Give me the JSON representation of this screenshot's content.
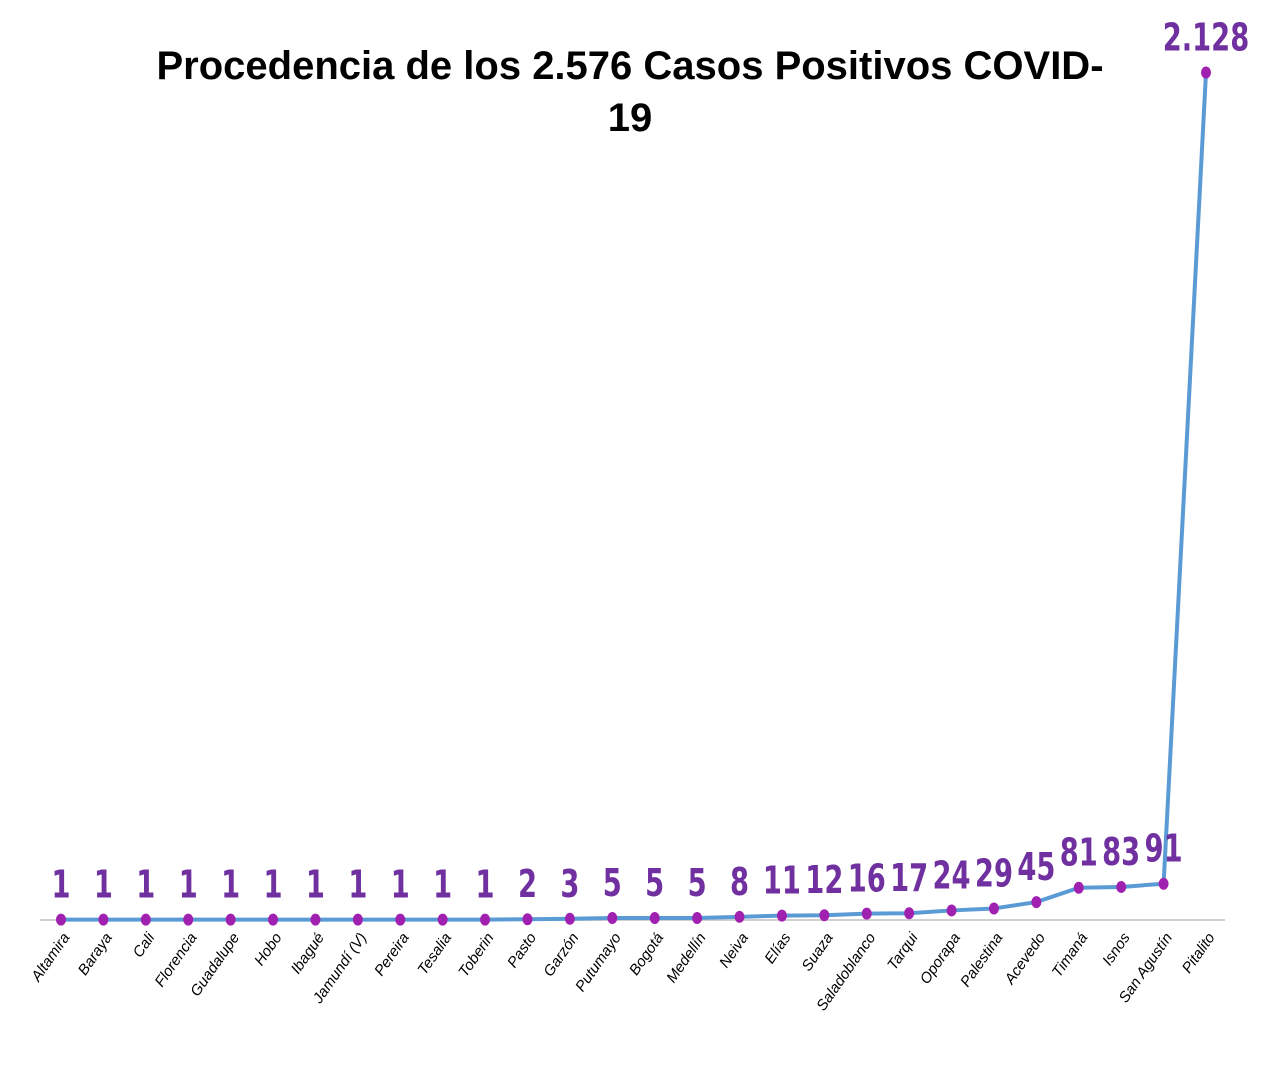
{
  "chart_data": {
    "type": "line",
    "title": "Procedencia de los 2.576 Casos Positivos COVID-19",
    "categories": [
      "Altamira",
      "Baraya",
      "Cali",
      "Florencia",
      "Guadalupe",
      "Hobo",
      "Ibagué",
      "Jamundí (V)",
      "Pereira",
      "Tesalia",
      "Toberin",
      "Pasto",
      "Garzón",
      "Putumayo",
      "Bogotá",
      "Medellín",
      "Neiva",
      "Elías",
      "Suaza",
      "Saladoblanco",
      "Tarqui",
      "Oporapa",
      "Palestina",
      "Acevedo",
      "Timaná",
      "Isnos",
      "San Agustín",
      "Pitalito"
    ],
    "values": [
      1,
      1,
      1,
      1,
      1,
      1,
      1,
      1,
      1,
      1,
      1,
      2,
      3,
      5,
      5,
      5,
      8,
      11,
      12,
      16,
      17,
      24,
      29,
      45,
      81,
      83,
      91,
      2128
    ],
    "value_labels": [
      "1",
      "1",
      "1",
      "1",
      "1",
      "1",
      "1",
      "1",
      "1",
      "1",
      "1",
      "2",
      "3",
      "5",
      "5",
      "5",
      "8",
      "11",
      "12",
      "16",
      "17",
      "24",
      "29",
      "45",
      "81",
      "83",
      "91",
      "2.128"
    ],
    "color": "#5b9bd5",
    "marker_color": "#a020b0",
    "label_color": "#7030a0",
    "ylim": [
      0,
      2300
    ]
  }
}
